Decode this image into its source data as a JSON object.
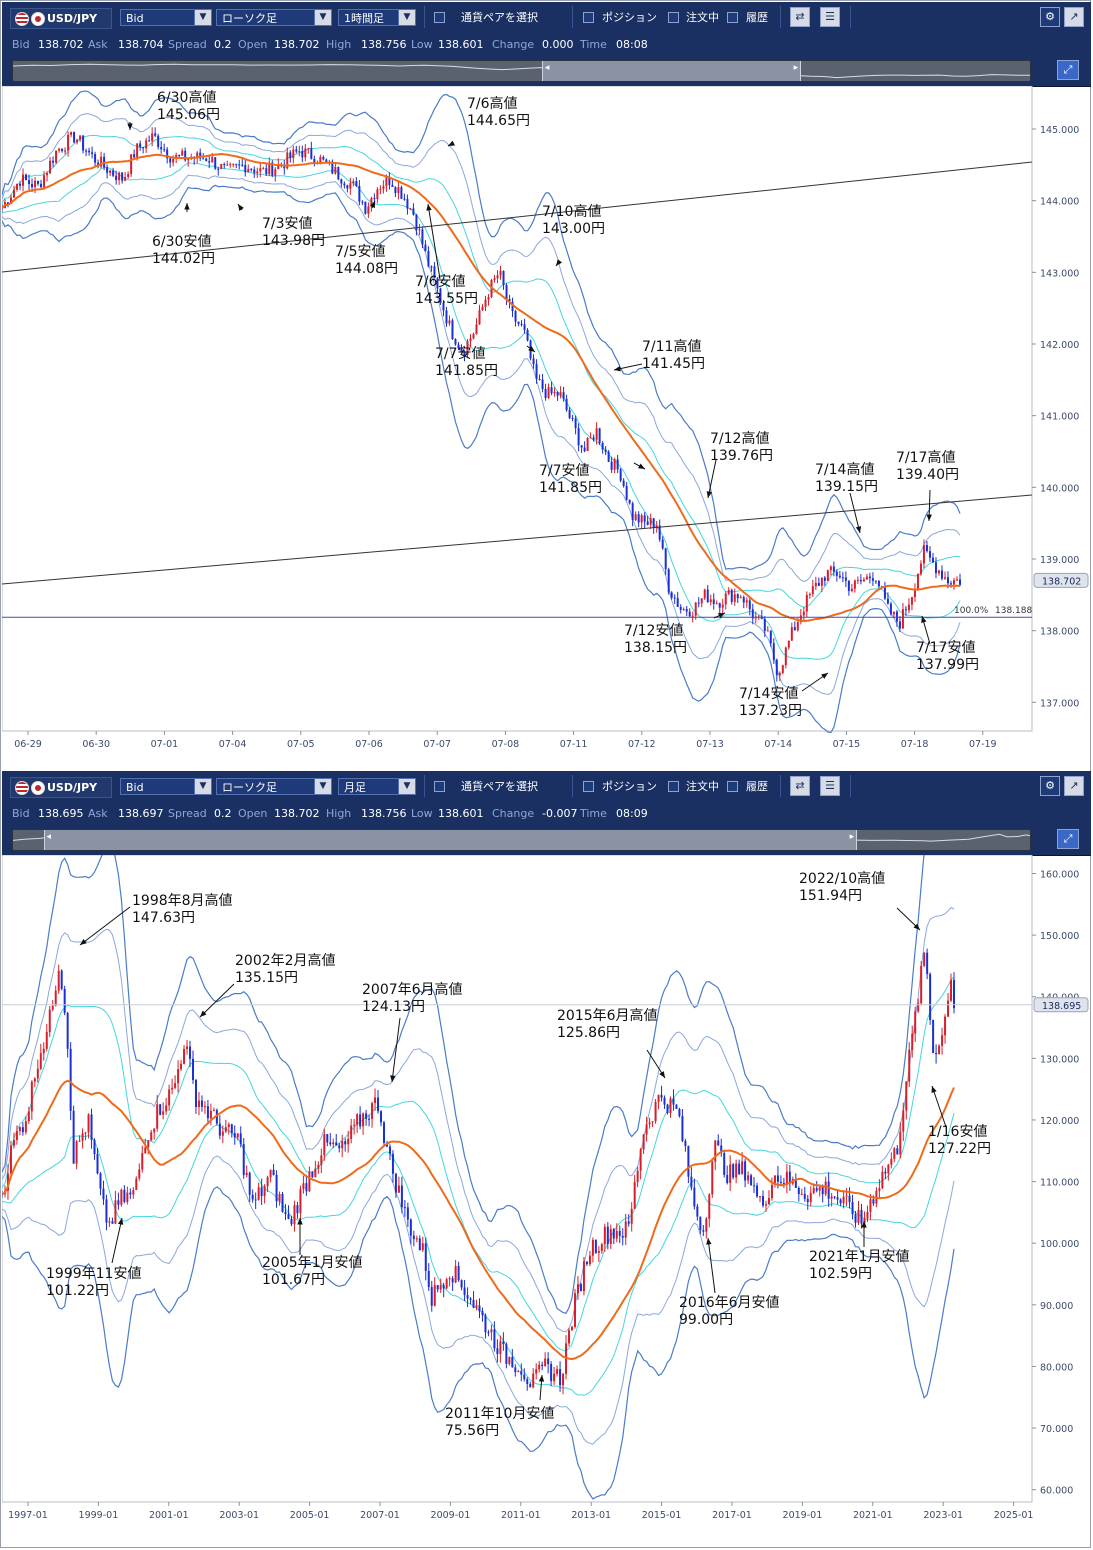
{
  "panels": [
    {
      "toolbar": {
        "pair": "USD/JPY",
        "price_type": "Bid",
        "chart_style": "ローソク足",
        "timeframe": "1時間足",
        "pair_select": "通貨ペアを選択",
        "position": "ポジション",
        "orders": "注文中",
        "history": "履歴"
      },
      "info": {
        "bid_label": "Bid",
        "bid": "138.702",
        "ask_label": "Ask",
        "ask": "138.704",
        "spread_label": "Spread",
        "spread": "0.2",
        "open_label": "Open",
        "open": "138.702",
        "high_label": "High",
        "high": "138.756",
        "low_label": "Low",
        "low": "138.601",
        "change_label": "Change",
        "change": "0.000",
        "time_label": "Time",
        "time": "08:08"
      },
      "navigator": {
        "window_start": 0.52,
        "window_end": 0.775
      }
    },
    {
      "toolbar": {
        "pair": "USD/JPY",
        "price_type": "Bid",
        "chart_style": "ローソク足",
        "timeframe": "月足",
        "pair_select": "通貨ペアを選択",
        "position": "ポジション",
        "orders": "注文中",
        "history": "履歴"
      },
      "info": {
        "bid_label": "Bid",
        "bid": "138.695",
        "ask_label": "Ask",
        "ask": "138.697",
        "spread_label": "Spread",
        "spread": "0.2",
        "open_label": "Open",
        "open": "138.702",
        "high_label": "High",
        "high": "138.756",
        "low_label": "Low",
        "low": "138.601",
        "change_label": "Change",
        "change": "-0.007",
        "time_label": "Time",
        "time": "08:09"
      },
      "navigator": {
        "window_start": 0.03,
        "window_end": 0.83
      }
    }
  ],
  "chart_data": [
    {
      "type": "candlestick",
      "title": "",
      "ylim": [
        136.6,
        145.6
      ],
      "yticks": [
        "145.000",
        "144.000",
        "143.000",
        "142.000",
        "141.000",
        "140.000",
        "139.000",
        "138.000",
        "137.000"
      ],
      "ytick_values": [
        145,
        144,
        143,
        142,
        141,
        140,
        139,
        138,
        137
      ],
      "xticks": [
        "06-29",
        "06-30",
        "07-01",
        "07-04",
        "07-05",
        "07-06",
        "07-07",
        "07-08",
        "07-11",
        "07-12",
        "07-13",
        "07-14",
        "07-15",
        "07-18",
        "07-19"
      ],
      "last_price": "138.702",
      "last_price_value": 138.702,
      "level_label": "100.0%",
      "level_value_text": "138.188",
      "level_value": 138.188,
      "price_path": [
        [
          0,
          143.9
        ],
        [
          3,
          144.3
        ],
        [
          6,
          144.2
        ],
        [
          9,
          144.7
        ],
        [
          12,
          144.9
        ],
        [
          15,
          144.6
        ],
        [
          18,
          144.4
        ],
        [
          20,
          144.3
        ],
        [
          22,
          144.7
        ],
        [
          25,
          144.9
        ],
        [
          28,
          144.6
        ],
        [
          31,
          144.6
        ],
        [
          34,
          144.6
        ],
        [
          37,
          144.4
        ],
        [
          40,
          144.5
        ],
        [
          43,
          144.4
        ],
        [
          46,
          144.5
        ],
        [
          49,
          144.7
        ],
        [
          52,
          144.6
        ],
        [
          55,
          144.4
        ],
        [
          58,
          144.2
        ],
        [
          60,
          143.9
        ],
        [
          62,
          144.2
        ],
        [
          64,
          144.3
        ],
        [
          66,
          144.1
        ],
        [
          68,
          143.8
        ],
        [
          70,
          143.2
        ],
        [
          72,
          142.7
        ],
        [
          74,
          142.2
        ],
        [
          76,
          141.9
        ],
        [
          78,
          142.2
        ],
        [
          80,
          142.7
        ],
        [
          82,
          143.0
        ],
        [
          84,
          142.4
        ],
        [
          86,
          142.2
        ],
        [
          88,
          141.5
        ],
        [
          90,
          141.3
        ],
        [
          92,
          141.3
        ],
        [
          94,
          140.9
        ],
        [
          96,
          140.5
        ],
        [
          98,
          140.8
        ],
        [
          100,
          140.4
        ],
        [
          102,
          140.2
        ],
        [
          104,
          139.6
        ],
        [
          106,
          139.5
        ],
        [
          108,
          139.5
        ],
        [
          110,
          138.6
        ],
        [
          112,
          138.3
        ],
        [
          114,
          138.3
        ],
        [
          116,
          138.5
        ],
        [
          118,
          138.4
        ],
        [
          120,
          138.5
        ],
        [
          122,
          138.5
        ],
        [
          124,
          138.2
        ],
        [
          126,
          138.0
        ],
        [
          128,
          137.4
        ],
        [
          130,
          137.9
        ],
        [
          132,
          138.3
        ],
        [
          134,
          138.6
        ],
        [
          136,
          138.8
        ],
        [
          138,
          138.8
        ],
        [
          140,
          138.6
        ],
        [
          142,
          138.7
        ],
        [
          144,
          138.8
        ],
        [
          146,
          138.3
        ],
        [
          148,
          138.1
        ],
        [
          150,
          138.5
        ],
        [
          152,
          139.1
        ],
        [
          154,
          138.9
        ],
        [
          156,
          138.7
        ],
        [
          158,
          138.7
        ]
      ],
      "annotations": [
        {
          "text": "6/30高値",
          "price": "145.06円"
        },
        {
          "text": "6/30安値",
          "price": "144.02円"
        },
        {
          "text": "7/3安値",
          "price": "143.98円"
        },
        {
          "text": "7/5安値",
          "price": "144.08円"
        },
        {
          "text": "7/6高値",
          "price": "144.65円"
        },
        {
          "text": "7/6安値",
          "price": "143.55円"
        },
        {
          "text": "7/10高値",
          "price": "143.00円"
        },
        {
          "text": "7/7安値",
          "price": "141.85円"
        },
        {
          "text": "7/11高値",
          "price": "141.45円"
        },
        {
          "text": "7/7安値",
          "price": "141.85円"
        },
        {
          "text": "7/12高値",
          "price": "139.76円"
        },
        {
          "text": "7/12安値",
          "price": "138.15円"
        },
        {
          "text": "7/14高値",
          "price": "139.15円"
        },
        {
          "text": "7/14安値",
          "price": "137.23円"
        },
        {
          "text": "7/17高値",
          "price": "139.40円"
        },
        {
          "text": "7/17安値",
          "price": "137.99円"
        }
      ]
    },
    {
      "type": "candlestick",
      "title": "",
      "ylim": [
        58,
        163
      ],
      "yticks": [
        "160.000",
        "150.000",
        "140.000",
        "130.000",
        "120.000",
        "110.000",
        "100.000",
        "90.000",
        "80.000",
        "70.000",
        "60.000"
      ],
      "ytick_values": [
        160,
        150,
        140,
        130,
        120,
        110,
        100,
        90,
        80,
        70,
        60
      ],
      "xticks": [
        "1997-01",
        "1999-01",
        "2001-01",
        "2003-01",
        "2005-01",
        "2007-01",
        "2009-01",
        "2011-01",
        "2013-01",
        "2015-01",
        "2017-01",
        "2019-01",
        "2021-01",
        "2023-01",
        "2025-01"
      ],
      "last_price": "138.695",
      "last_price_value": 138.695,
      "price_path": [
        [
          1997.0,
          108
        ],
        [
          1997.3,
          116
        ],
        [
          1997.7,
          121
        ],
        [
          1998.0,
          130
        ],
        [
          1998.3,
          135
        ],
        [
          1998.6,
          146
        ],
        [
          1998.8,
          136
        ],
        [
          1999.0,
          114
        ],
        [
          1999.4,
          120
        ],
        [
          1999.8,
          106
        ],
        [
          2000.0,
          103
        ],
        [
          2000.3,
          107
        ],
        [
          2000.7,
          108
        ],
        [
          2001.0,
          117
        ],
        [
          2001.4,
          122
        ],
        [
          2001.8,
          125
        ],
        [
          2002.1,
          133
        ],
        [
          2002.4,
          124
        ],
        [
          2002.8,
          121
        ],
        [
          2003.2,
          118
        ],
        [
          2003.6,
          117
        ],
        [
          2004.0,
          106
        ],
        [
          2004.5,
          111
        ],
        [
          2005.0,
          103
        ],
        [
          2005.5,
          110
        ],
        [
          2006.0,
          116
        ],
        [
          2006.5,
          115
        ],
        [
          2007.0,
          120
        ],
        [
          2007.5,
          123
        ],
        [
          2007.8,
          114
        ],
        [
          2008.3,
          104
        ],
        [
          2008.8,
          98
        ],
        [
          2009.0,
          91
        ],
        [
          2009.5,
          96
        ],
        [
          2010.0,
          92
        ],
        [
          2010.5,
          87
        ],
        [
          2011.0,
          82
        ],
        [
          2011.5,
          80
        ],
        [
          2011.8,
          77
        ],
        [
          2012.2,
          80
        ],
        [
          2012.6,
          78
        ],
        [
          2013.0,
          90
        ],
        [
          2013.4,
          99
        ],
        [
          2014.0,
          102
        ],
        [
          2014.5,
          102
        ],
        [
          2014.9,
          118
        ],
        [
          2015.4,
          124
        ],
        [
          2015.9,
          121
        ],
        [
          2016.3,
          107
        ],
        [
          2016.6,
          102
        ],
        [
          2016.9,
          116
        ],
        [
          2017.3,
          111
        ],
        [
          2017.8,
          112
        ],
        [
          2018.2,
          106
        ],
        [
          2018.6,
          111
        ],
        [
          2019.0,
          110
        ],
        [
          2019.5,
          108
        ],
        [
          2020.0,
          109
        ],
        [
          2020.4,
          107
        ],
        [
          2020.8,
          105
        ],
        [
          2021.0,
          103
        ],
        [
          2021.5,
          110
        ],
        [
          2022.0,
          115
        ],
        [
          2022.3,
          128
        ],
        [
          2022.8,
          148
        ],
        [
          2023.0,
          131
        ],
        [
          2023.3,
          134
        ],
        [
          2023.5,
          144
        ],
        [
          2023.6,
          139
        ]
      ],
      "annotations": [
        {
          "text": "1998年8月高値",
          "price": "147.63円"
        },
        {
          "text": "1999年11安値",
          "price": "101.22円"
        },
        {
          "text": "2002年2月高値",
          "price": "135.15円"
        },
        {
          "text": "2005年1月安値",
          "price": "101.67円"
        },
        {
          "text": "2007年6月高値",
          "price": "124.13円"
        },
        {
          "text": "2011年10月安値",
          "price": "75.56円"
        },
        {
          "text": "2015年6月高値",
          "price": "125.86円"
        },
        {
          "text": "2016年6月安値",
          "price": "99.00円"
        },
        {
          "text": "2021年1月安値",
          "price": "102.59円"
        },
        {
          "text": "2022/10高値",
          "price": "151.94円"
        },
        {
          "text": "1/16安値",
          "price": "127.22円"
        }
      ]
    }
  ]
}
